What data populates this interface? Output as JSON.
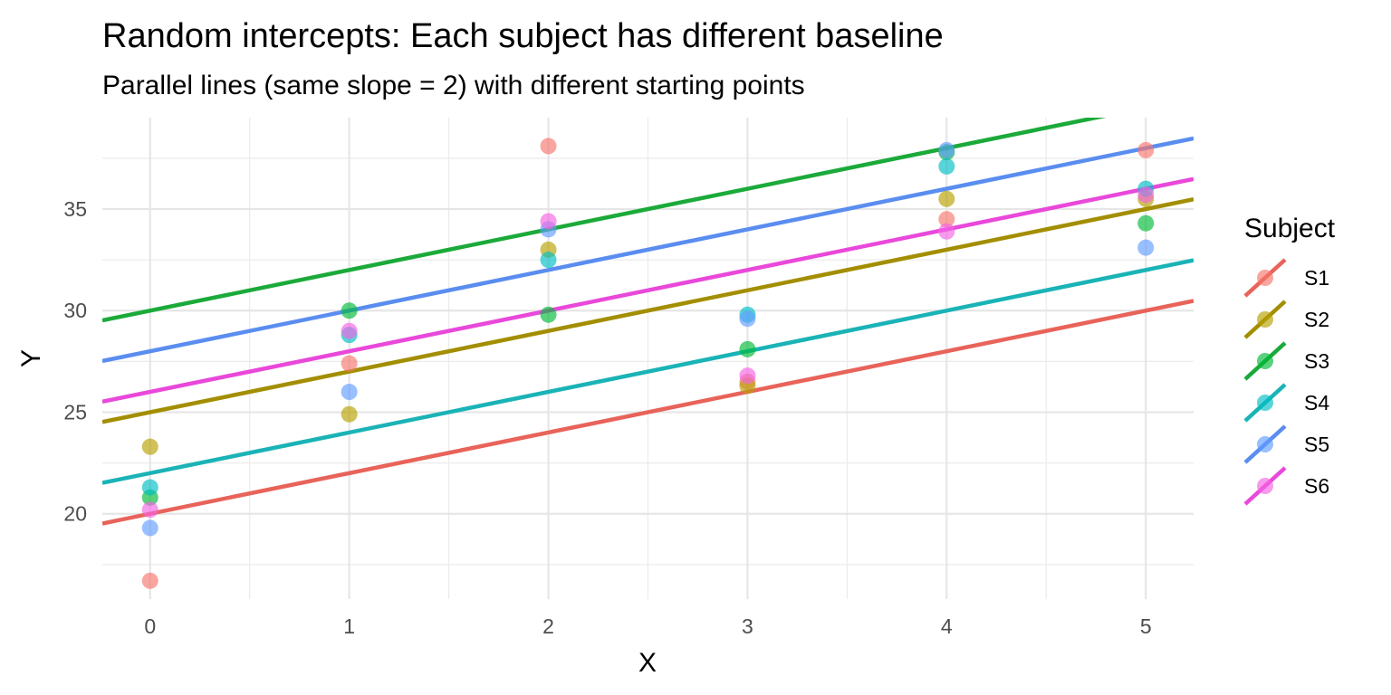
{
  "chart_data": {
    "type": "scatter",
    "title": "Random intercepts: Each subject has different baseline",
    "subtitle": "Parallel lines (same slope = 2) with different starting points",
    "xlabel": "X",
    "ylabel": "Y",
    "xlim": [
      -0.24,
      5.24
    ],
    "ylim": [
      15.8,
      39.5
    ],
    "x_ticks": [
      0,
      1,
      2,
      3,
      4,
      5
    ],
    "y_ticks": [
      20,
      25,
      30,
      35
    ],
    "grid": true,
    "legend": {
      "title": "Subject",
      "position": "right"
    },
    "slope": 2,
    "series": [
      {
        "name": "S1",
        "color": "#F8766D",
        "intercept": 20,
        "points": [
          [
            0,
            16.7
          ],
          [
            1,
            27.4
          ],
          [
            2,
            38.1
          ],
          [
            3,
            26.5
          ],
          [
            4,
            34.5
          ],
          [
            5,
            37.9
          ]
        ]
      },
      {
        "name": "S2",
        "color": "#B79F00",
        "intercept": 25,
        "points": [
          [
            0,
            23.3
          ],
          [
            1,
            24.9
          ],
          [
            2,
            33.0
          ],
          [
            3,
            26.3
          ],
          [
            4,
            35.5
          ],
          [
            5,
            35.5
          ]
        ]
      },
      {
        "name": "S3",
        "color": "#00BA38",
        "intercept": 30,
        "points": [
          [
            0,
            20.8
          ],
          [
            1,
            30.0
          ],
          [
            2,
            29.8
          ],
          [
            3,
            28.1
          ],
          [
            4,
            37.8
          ],
          [
            5,
            34.3
          ]
        ]
      },
      {
        "name": "S4",
        "color": "#00BFC4",
        "intercept": 22,
        "points": [
          [
            0,
            21.3
          ],
          [
            1,
            28.8
          ],
          [
            2,
            32.5
          ],
          [
            3,
            29.8
          ],
          [
            4,
            37.1
          ],
          [
            5,
            36.0
          ]
        ]
      },
      {
        "name": "S5",
        "color": "#619CFF",
        "intercept": 28,
        "points": [
          [
            0,
            19.3
          ],
          [
            1,
            26.0
          ],
          [
            2,
            34.0
          ],
          [
            3,
            29.6
          ],
          [
            4,
            37.9
          ],
          [
            5,
            33.1
          ]
        ]
      },
      {
        "name": "S6",
        "color": "#F564E3",
        "intercept": 26,
        "points": [
          [
            0,
            20.2
          ],
          [
            1,
            29.0
          ],
          [
            2,
            34.4
          ],
          [
            3,
            26.8
          ],
          [
            4,
            33.9
          ],
          [
            5,
            35.7
          ]
        ]
      }
    ],
    "line_colors": {
      "S1": "#E8635A",
      "S2": "#A38E00",
      "S3": "#1BAA3A",
      "S4": "#1AB3B6",
      "S5": "#5A8DF0",
      "S6": "#E948DA"
    }
  }
}
